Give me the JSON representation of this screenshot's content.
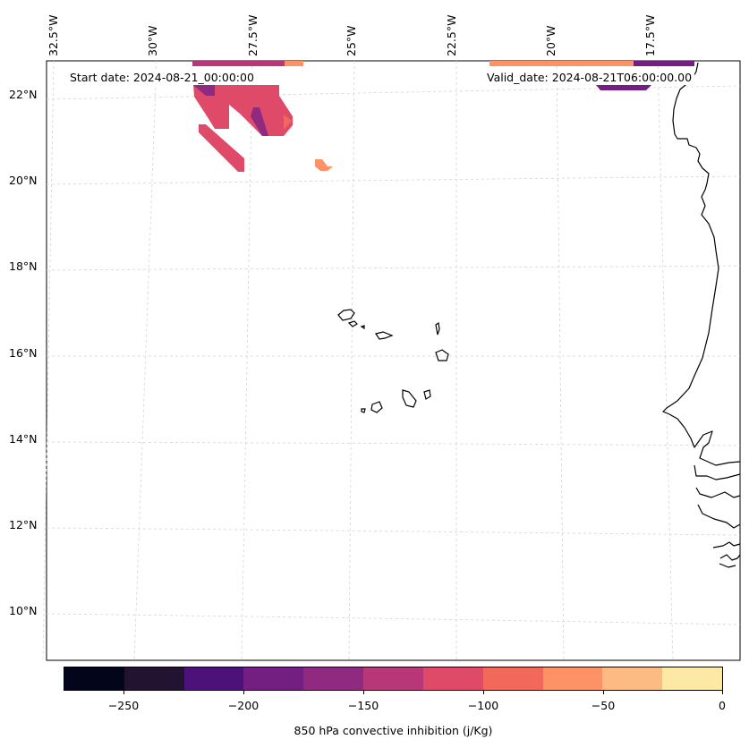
{
  "map": {
    "start_date_label": "Start date: 2024-08-21_00:00:00",
    "valid_date_label": "Valid_date: 2024-08-21T06:00:00.00",
    "lon_labels": [
      "32.5°W",
      "30°W",
      "27.5°W",
      "25°W",
      "22.5°W",
      "20°W",
      "17.5°W"
    ],
    "lat_labels": [
      "22°N",
      "20°N",
      "18°N",
      "16°N",
      "14°N",
      "12°N",
      "10°N"
    ],
    "coastline_color": "#000000",
    "gridline_color": "#cccccc"
  },
  "colorbar": {
    "title": "850 hPa convective inhibition (j/Kg)",
    "tick_labels": [
      "−250",
      "−200",
      "−150",
      "−100",
      "−50",
      "0"
    ],
    "levels": [
      -275,
      -250,
      -225,
      -200,
      -175,
      -150,
      -125,
      -100,
      -75,
      -50,
      -25,
      0
    ],
    "colors": [
      "#03051a",
      "#221331",
      "#4c1279",
      "#731f81",
      "#8f2a80",
      "#b73779",
      "#de4a68",
      "#f2695c",
      "#fc9266",
      "#fdbb84",
      "#fde9a6"
    ]
  }
}
